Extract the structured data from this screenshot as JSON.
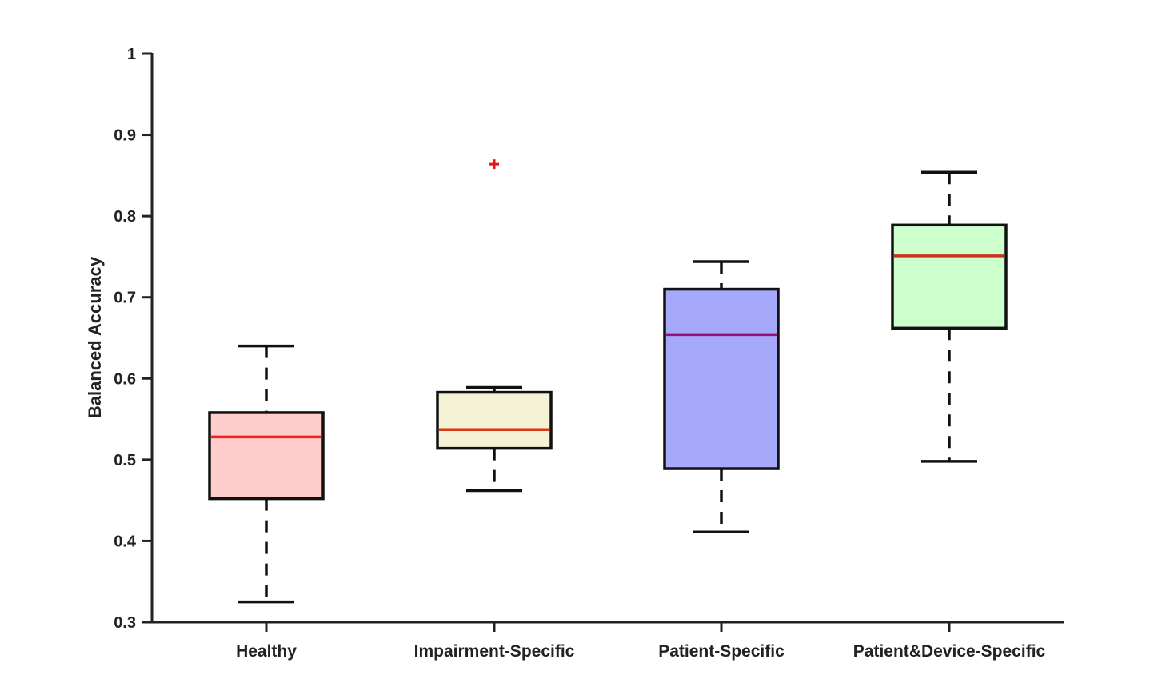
{
  "chart_data": {
    "type": "box",
    "title": "",
    "xlabel": "",
    "ylabel": "Balanced Accuracy",
    "ylim": [
      0.3,
      1.0
    ],
    "yticks": [
      "0.3",
      "0.4",
      "0.5",
      "0.6",
      "0.7",
      "0.8",
      "0.9",
      "1"
    ],
    "grid": false,
    "legend": "none",
    "categories": [
      "Healthy",
      "Impairment-Specific",
      "Patient-Specific",
      "Patient&Device-Specific"
    ],
    "boxes": [
      {
        "category": "Healthy",
        "whisker_low": 0.325,
        "q1": 0.452,
        "median": 0.528,
        "q3": 0.558,
        "whisker_high": 0.64,
        "outliers": [],
        "fill": "#ffcccc",
        "median_color": "#e8261c"
      },
      {
        "category": "Impairment-Specific",
        "whisker_low": 0.462,
        "q1": 0.514,
        "median": 0.537,
        "q3": 0.583,
        "whisker_high": 0.589,
        "outliers": [
          0.864
        ],
        "fill": "#f5f3d6",
        "median_color": "#dd3a14"
      },
      {
        "category": "Patient-Specific",
        "whisker_low": 0.411,
        "q1": 0.489,
        "median": 0.654,
        "q3": 0.71,
        "whisker_high": 0.744,
        "outliers": [],
        "fill": "#a5a8fb",
        "median_color": "#9a0f74"
      },
      {
        "category": "Patient&Device-Specific",
        "whisker_low": 0.498,
        "q1": 0.662,
        "median": 0.751,
        "q3": 0.789,
        "whisker_high": 0.854,
        "outliers": [],
        "fill": "#ccffcc",
        "median_color": "#c9331c"
      }
    ],
    "outlier_color": "#ee1111"
  }
}
